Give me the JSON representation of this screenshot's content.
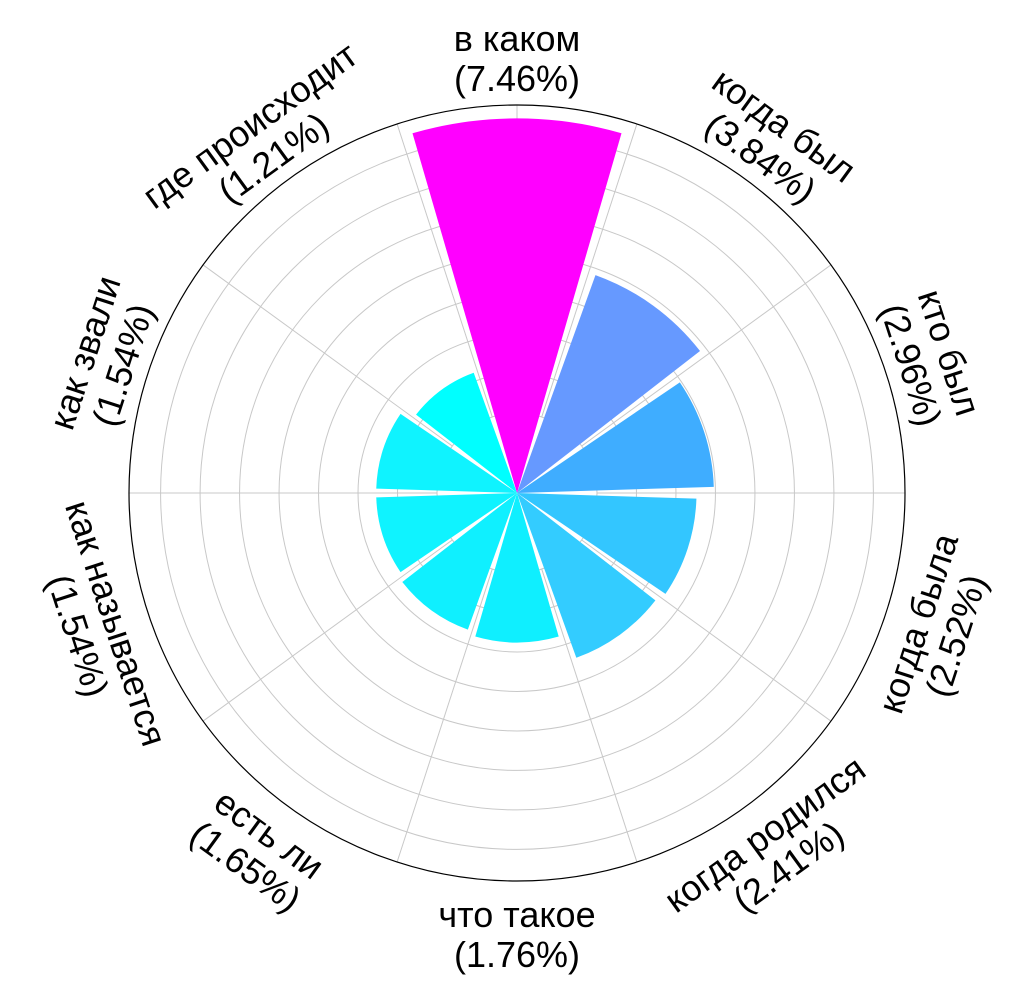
{
  "chart_data": {
    "type": "polar-bar",
    "title": "",
    "max_value": 7.8,
    "grid_rings": [
      1,
      2,
      3,
      4,
      5,
      6,
      7
    ],
    "grid": true,
    "start": "top",
    "direction": "clockwise",
    "categories": [
      {
        "name": "в каком",
        "value": 7.46,
        "label": "(7.46%)",
        "color": "#ff00ff"
      },
      {
        "name": "когда был",
        "value": 3.84,
        "label": "(3.84%)",
        "color": "#6699ff"
      },
      {
        "name": "кто был",
        "value": 2.96,
        "label": "(2.96%)",
        "color": "#3fadff"
      },
      {
        "name": "когда была",
        "value": 2.52,
        "label": "(2.52%)",
        "color": "#33c6ff"
      },
      {
        "name": "когда родился",
        "value": 2.41,
        "label": "(2.41%)",
        "color": "#33ccff"
      },
      {
        "name": "что такое",
        "value": 1.76,
        "label": "(1.76%)",
        "color": "#0fefff"
      },
      {
        "name": "есть ли",
        "value": 1.65,
        "label": "(1.65%)",
        "color": "#0ff0ff"
      },
      {
        "name": "как называется",
        "value": 1.54,
        "label": "(1.54%)",
        "color": "#0ff3ff"
      },
      {
        "name": "как звали",
        "value": 1.54,
        "label": "(1.54%)",
        "color": "#0ff3ff"
      },
      {
        "name": "где происходит",
        "value": 1.21,
        "label": "(1.21%)",
        "color": "#00ffff"
      }
    ]
  }
}
